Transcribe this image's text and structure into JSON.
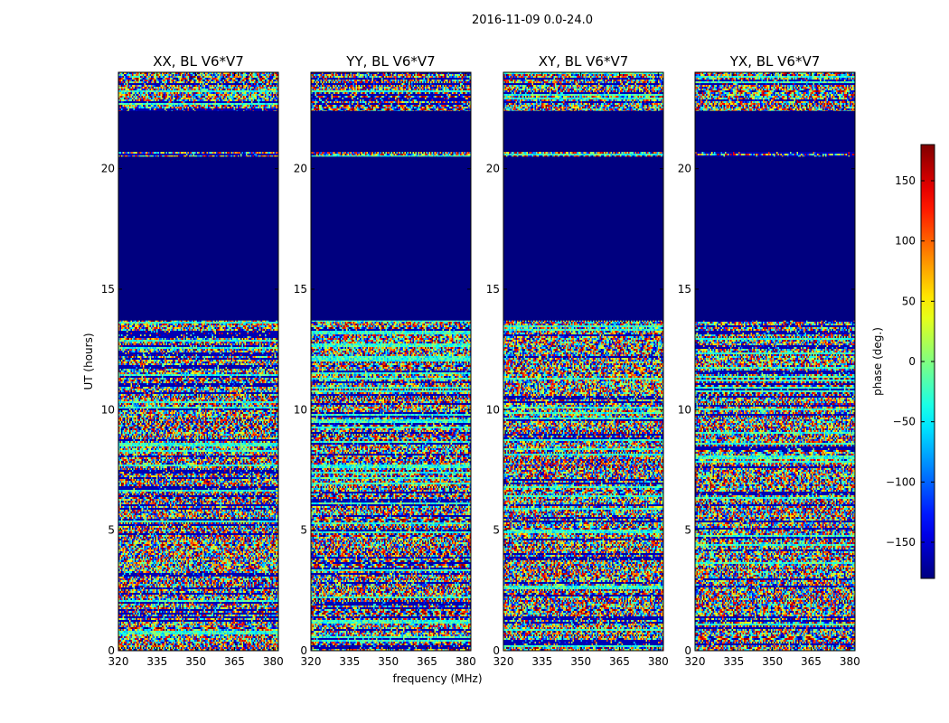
{
  "chart_data": {
    "type": "heatmap",
    "suptitle": "2016-11-09 0.0-24.0",
    "xlabel": "frequency (MHz)",
    "ylabel": "UT (hours)",
    "xlim": [
      320,
      382
    ],
    "ylim": [
      0,
      24
    ],
    "xticks": [
      320,
      335,
      350,
      365,
      380
    ],
    "yticks": [
      0,
      5,
      10,
      15,
      20
    ],
    "panels": [
      {
        "title": "XX, BL V6*V7",
        "polarization": "XX"
      },
      {
        "title": "YY, BL V6*V7",
        "polarization": "YY"
      },
      {
        "title": "XY, BL V6*V7",
        "polarization": "XY"
      },
      {
        "title": "YX, BL V6*V7",
        "polarization": "YX"
      }
    ],
    "flagged_ut_ranges": [
      [
        13.7,
        20.5
      ],
      [
        20.7,
        22.4
      ]
    ],
    "colorbar": {
      "label": "phase (deg.)",
      "range": [
        -180,
        180
      ],
      "ticks": [
        -150,
        -100,
        -50,
        0,
        50,
        100,
        150
      ],
      "tick_labels": [
        "−150",
        "−100",
        "−50",
        "0",
        "50",
        "100",
        "150"
      ],
      "colormap": "jet"
    }
  }
}
